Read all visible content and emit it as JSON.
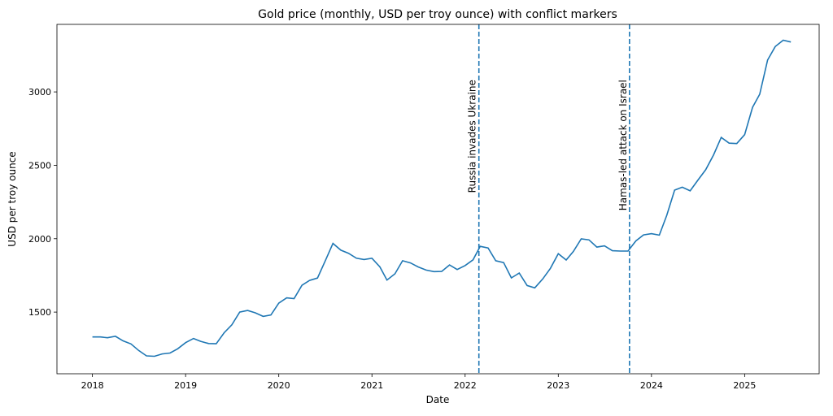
{
  "chart_data": {
    "type": "line",
    "title": "Gold price (monthly, USD per troy ounce) with conflict markers",
    "xlabel": "Date",
    "ylabel": "USD per troy ounce",
    "xlim": [
      "2017-08-15",
      "2025-10-20"
    ],
    "ylim": [
      1080,
      3460
    ],
    "x_ticks": [
      "2018",
      "2019",
      "2020",
      "2021",
      "2022",
      "2023",
      "2024",
      "2025"
    ],
    "y_ticks": [
      1500,
      2000,
      2500,
      3000
    ],
    "grid": false,
    "line_color": "#1f77b4",
    "start_month": "2018-01",
    "values": [
      1331,
      1331,
      1325,
      1335,
      1304,
      1283,
      1239,
      1202,
      1199,
      1215,
      1221,
      1250,
      1292,
      1320,
      1301,
      1286,
      1284,
      1359,
      1413,
      1500,
      1511,
      1495,
      1471,
      1480,
      1561,
      1597,
      1592,
      1683,
      1716,
      1732,
      1846,
      1968,
      1922,
      1901,
      1867,
      1858,
      1867,
      1808,
      1718,
      1761,
      1850,
      1835,
      1808,
      1786,
      1776,
      1777,
      1821,
      1790,
      1817,
      1856,
      1948,
      1937,
      1850,
      1837,
      1733,
      1766,
      1681,
      1665,
      1726,
      1798,
      1898,
      1855,
      1913,
      1999,
      1992,
      1943,
      1951,
      1918,
      1916,
      1916,
      1985,
      2026,
      2034,
      2024,
      2159,
      2331,
      2351,
      2326,
      2398,
      2470,
      2571,
      2690,
      2651,
      2648,
      2709,
      2895,
      2984,
      3217,
      3309,
      3352,
      3340
    ],
    "annotations": [
      {
        "date": "2022-02-24",
        "label": "Russia invades Ukraine",
        "style": "dashed",
        "color": "#1f77b4"
      },
      {
        "date": "2023-10-07",
        "label": "Hamas-led attack on Israel",
        "style": "dashed",
        "color": "#1f77b4"
      }
    ]
  }
}
